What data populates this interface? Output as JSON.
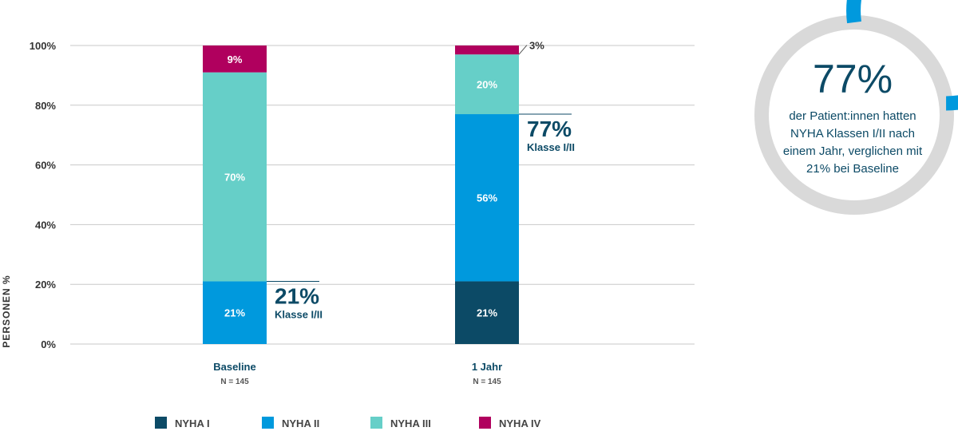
{
  "chart_data": {
    "type": "bar",
    "stacked": true,
    "ylabel": "PERSONEN %",
    "yticks": [
      "0%",
      "20%",
      "40%",
      "60%",
      "80%",
      "100%"
    ],
    "ylim": [
      0,
      100
    ],
    "grid": true,
    "categories": [
      {
        "label": "Baseline",
        "n": "N = 145"
      },
      {
        "label": "1 Jahr",
        "n": "N = 145"
      }
    ],
    "series": [
      {
        "name": "NYHA I",
        "color": "#0c4a66",
        "values": [
          0,
          21
        ],
        "labels": [
          "",
          "21%"
        ]
      },
      {
        "name": "NYHA II",
        "color": "#0099dd",
        "values": [
          21,
          56
        ],
        "labels": [
          "21%",
          "56%"
        ]
      },
      {
        "name": "NYHA III",
        "color": "#66cfc8",
        "values": [
          70,
          20
        ],
        "labels": [
          "70%",
          "20%"
        ]
      },
      {
        "name": "NYHA IV",
        "color": "#b0005e",
        "values": [
          9,
          3
        ],
        "labels": [
          "9%",
          "3%"
        ]
      }
    ],
    "annotations": [
      {
        "category": 0,
        "at": 21,
        "value": "21%",
        "text": "Klasse I/II"
      },
      {
        "category": 1,
        "at": 77,
        "value": "77%",
        "text": "Klasse I/II"
      }
    ],
    "legend_position": "bottom"
  },
  "callout": {
    "percent_value": 77,
    "percent_label": "77%",
    "lines": [
      "der Patient:innen hatten",
      "NYHA Klassen I/II nach",
      "einem Jahr, verglichen mit",
      "21% bei Baseline"
    ],
    "ring_color": "#0099dd",
    "track_color": "#d9d9d9"
  }
}
